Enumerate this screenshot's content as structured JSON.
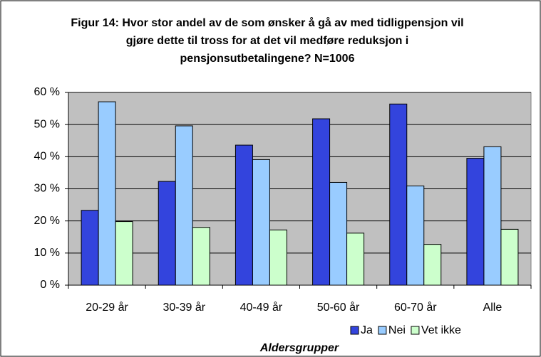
{
  "chart_data": {
    "type": "bar",
    "title": "Figur 14: Hvor stor andel av de som ønsker å gå av med tidligpensjon vil gjøre dette til tross for at det vil medføre reduksjon i pensjonsutbetalingene? N=1006",
    "x_label": "Aldersgrupper",
    "categories": [
      "20-29 år",
      "30-39 år",
      "40-49 år",
      "50-60 år",
      "60-70 år",
      "Alle"
    ],
    "series": [
      {
        "name": "Ja",
        "color": "#3344dd",
        "values": [
          23.3,
          32.3,
          43.6,
          51.8,
          56.4,
          39.5
        ]
      },
      {
        "name": "Nei",
        "color": "#99ccff",
        "values": [
          57.1,
          49.6,
          39.1,
          32.0,
          30.9,
          43.1
        ]
      },
      {
        "name": "Vet ikke",
        "color": "#ccffcc",
        "values": [
          19.8,
          18.0,
          17.2,
          16.2,
          12.7,
          17.4
        ]
      }
    ],
    "ylim": [
      0,
      60
    ],
    "yticks": [
      {
        "value": 0,
        "label": "0 %"
      },
      {
        "value": 10,
        "label": "10 %"
      },
      {
        "value": 20,
        "label": "20 %"
      },
      {
        "value": 30,
        "label": "30 %"
      },
      {
        "value": 40,
        "label": "40 %"
      },
      {
        "value": 50,
        "label": "50 %"
      },
      {
        "value": 60,
        "label": "60 %"
      }
    ],
    "grid": true,
    "legend": "bottom-right"
  }
}
